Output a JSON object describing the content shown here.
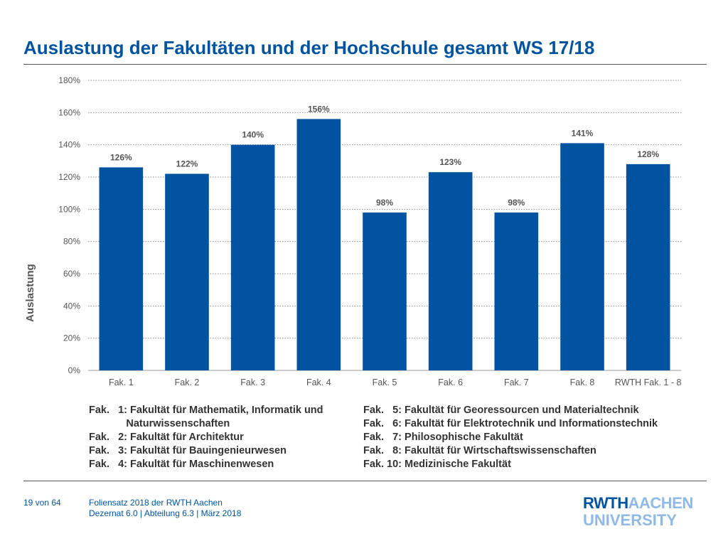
{
  "title": "Auslastung der Fakultäten und der Hochschule gesamt WS 17/18",
  "chart_data": {
    "type": "bar",
    "categories": [
      "Fak. 1",
      "Fak. 2",
      "Fak. 3",
      "Fak. 4",
      "Fak. 5",
      "Fak. 6",
      "Fak. 7",
      "Fak. 8",
      "RWTH Fak. 1 - 8"
    ],
    "values": [
      126,
      122,
      140,
      156,
      98,
      123,
      98,
      141,
      128
    ],
    "value_labels": [
      "126%",
      "122%",
      "140%",
      "156%",
      "98%",
      "123%",
      "98%",
      "141%",
      "128%"
    ],
    "ylabel": "Auslastung",
    "xlabel": "",
    "ylim": [
      0,
      180
    ],
    "yticks": [
      "0%",
      "20%",
      "40%",
      "60%",
      "80%",
      "100%",
      "120%",
      "140%",
      "160%",
      "180%"
    ],
    "grid": true,
    "bar_color": "#00539f"
  },
  "legend": {
    "left": [
      "Fak.   1: Fakultät für Mathematik, Informatik und",
      "             Naturwissenschaften",
      "Fak.   2: Fakultät für Architektur",
      "Fak.   3: Fakultät für Bauingenieurwesen",
      "Fak.   4: Fakultät für Maschinenwesen"
    ],
    "right": [
      "Fak.   5: Fakultät für Georessourcen und Materialtechnik",
      "Fak.   6: Fakultät für Elektrotechnik und Informationstechnik",
      "Fak.   7: Philosophische Fakultät",
      "Fak.   8: Fakultät für Wirtschaftswissenschaften",
      "Fak. 10: Medizinische Fakultät"
    ]
  },
  "footer": {
    "page": "19 von 64",
    "line1": "Foliensatz 2018 der RWTH Aachen",
    "line2": "Dezernat 6.0 | Abteilung 6.3 | März 2018"
  },
  "logo": {
    "part1": "RWTH",
    "part2": "AACHEN",
    "line2": "UNIVERSITY"
  },
  "colors": {
    "brand": "#00539f",
    "brand_light": "#8ebae5"
  }
}
